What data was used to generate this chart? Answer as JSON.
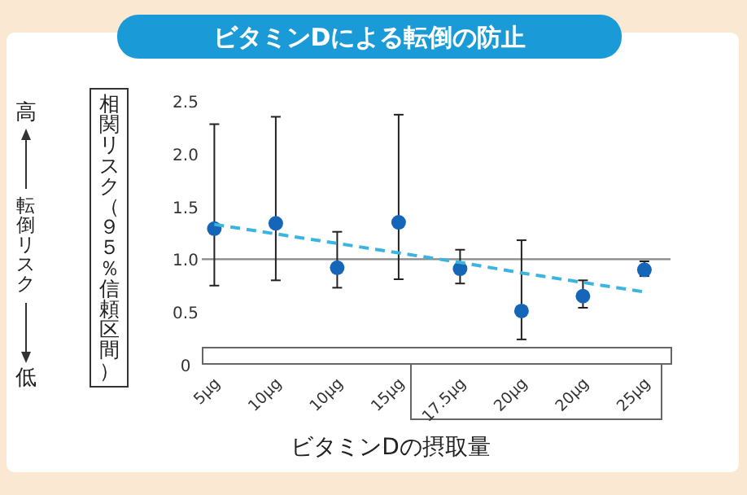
{
  "chart_data": {
    "type": "scatter",
    "title": "ビタミンDによる転倒の防止",
    "xlabel": "ビタミンDの摂取量",
    "ylabel": "相関リスク（９５％信頼区間）",
    "annotations": [
      "高",
      "転倒リスク",
      "低"
    ],
    "categories": [
      "5μg",
      "10μg",
      "10μg",
      "15μg",
      "17.5μg",
      "20μg",
      "20μg",
      "25μg"
    ],
    "series": [
      {
        "type": "scatter",
        "marker": "circle",
        "color": "#1565b8",
        "values": [
          1.29,
          1.34,
          0.92,
          1.35,
          0.91,
          0.51,
          0.65,
          0.9
        ],
        "errors": [
          [
            0.75,
            2.28
          ],
          [
            0.8,
            2.35
          ],
          [
            0.73,
            1.26
          ],
          [
            0.81,
            2.37
          ],
          [
            0.77,
            1.09
          ],
          [
            0.24,
            1.18
          ],
          [
            0.54,
            0.8
          ],
          [
            0.84,
            0.98
          ]
        ]
      },
      {
        "type": "line",
        "color": "#3bb5e0",
        "line_style": "dashed",
        "values": [
          1.33,
          1.24,
          1.15,
          1.06,
          0.97,
          0.87,
          0.78,
          0.69
        ]
      }
    ],
    "ylim": [
      0,
      2.5
    ],
    "yticks": [
      0,
      0.5,
      {
        "value": 1,
        "label": "1.0"
      },
      1.5,
      {
        "value": 2,
        "label": "2.0"
      },
      2.5
    ],
    "ref_lines": [
      {
        "axis": "y",
        "value": 1.0,
        "color": "#888888"
      }
    ],
    "grid": false
  }
}
